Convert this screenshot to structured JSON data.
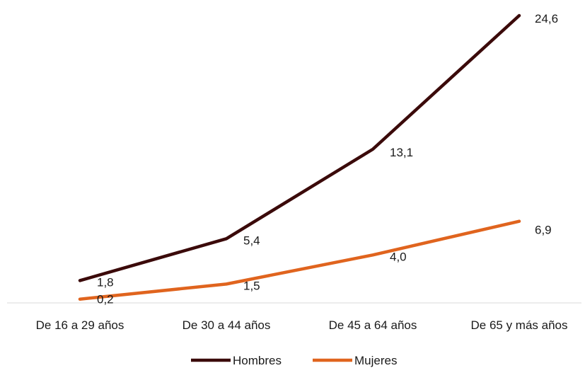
{
  "chart_data": {
    "type": "line",
    "categories": [
      "De 16 a 29 años",
      "De 30 a 44 años",
      "De 45 a 64 años",
      "De 65 y más años"
    ],
    "series": [
      {
        "name": "Hombres",
        "values": [
          1.8,
          5.4,
          13.1,
          24.6
        ],
        "labels": [
          "1,8",
          "5,4",
          "13,1",
          "24,6"
        ],
        "color": "#3b0a0a"
      },
      {
        "name": "Mujeres",
        "values": [
          0.2,
          1.5,
          4.0,
          6.9
        ],
        "labels": [
          "0,2",
          "1,5",
          "4,0",
          "6,9"
        ],
        "color": "#e0641e"
      }
    ],
    "title": "",
    "xlabel": "",
    "ylabel": "",
    "ylim": [
      0,
      24.6
    ],
    "grid": false,
    "legend_position": "bottom"
  }
}
